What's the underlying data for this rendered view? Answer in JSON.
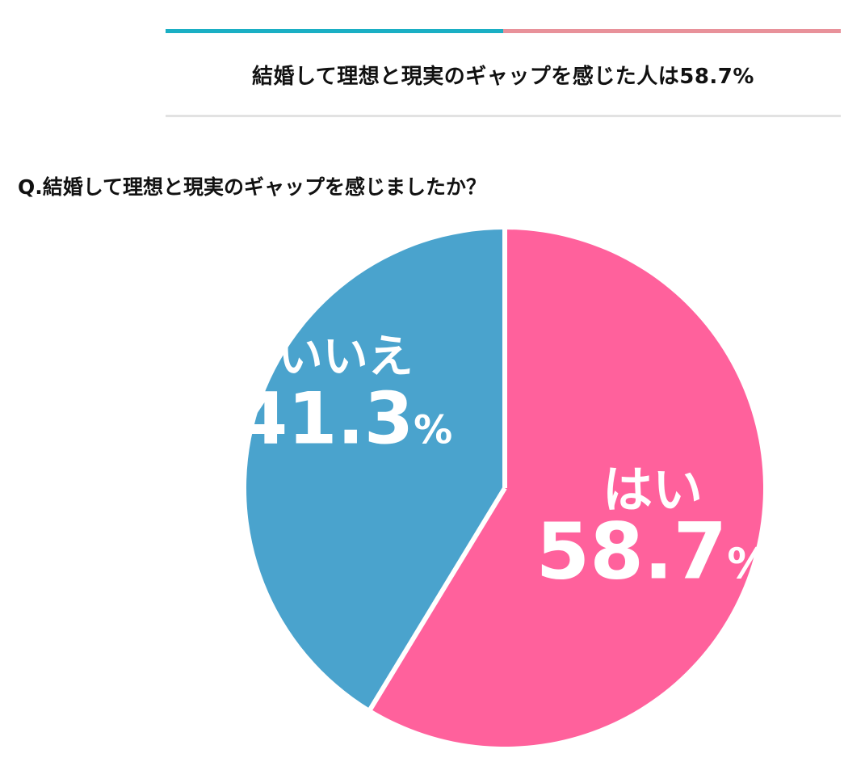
{
  "header": {
    "title": "結婚して理想と現実のギャップを感じた人は58.7%",
    "accent_colors": [
      "#1aafc4",
      "#e8919a"
    ]
  },
  "question": "Q.結婚して理想と現実のギャップを感じましたか？",
  "chart_data": {
    "type": "pie",
    "title": "",
    "slices": [
      {
        "label": "はい",
        "value": 58.7,
        "display": "58.7",
        "color": "#ff619c"
      },
      {
        "label": "いいえ",
        "value": 41.3,
        "display": "41.3",
        "color": "#4aa3cd"
      }
    ],
    "unit": "%",
    "start": "12 o'clock, clockwise",
    "label_color": "#ffffff"
  }
}
